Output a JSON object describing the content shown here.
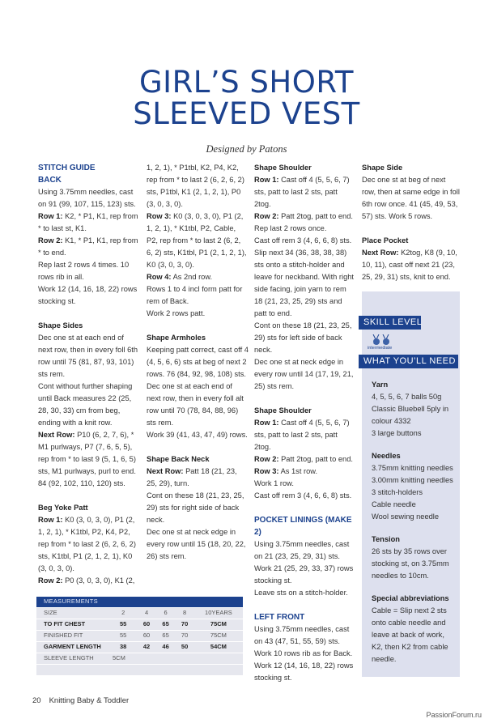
{
  "title_line1": "GIRL’S SHORT",
  "title_line2": "SLEEVED VEST",
  "byline": "Designed by Patons",
  "columns": [
    [
      {
        "type": "h2",
        "text": "STITCH GUIDE"
      },
      {
        "type": "h2",
        "text": "BACK"
      },
      {
        "type": "p",
        "text": "Using 3.75mm needles, cast on 91 (99, 107, 115, 123) sts."
      },
      {
        "type": "p",
        "bold": "Row 1:",
        "text": "K2, * P1, K1, rep from * to last st, K1."
      },
      {
        "type": "p",
        "bold": "Row 2:",
        "text": "K1, * P1, K1, rep from * to end."
      },
      {
        "type": "p",
        "text": "Rep last 2 rows 4 times. 10 rows rib in all."
      },
      {
        "type": "p",
        "text": "Work 12 (14, 16, 18, 22) rows stocking st."
      },
      {
        "type": "h3",
        "text": "Shape Sides"
      },
      {
        "type": "p",
        "text": "Dec one st at each end of next row, then in every foll 6th row until 75 (81, 87, 93, 101) sts rem."
      },
      {
        "type": "p",
        "text": "Cont without further shaping until Back measures 22 (25, 28, 30, 33) cm from beg, ending with a knit row."
      },
      {
        "type": "p",
        "bold": "Next Row:",
        "text": "P10 (6, 2, 7, 6), * M1 purlways, P7 (7, 6, 5, 5), rep from * to last 9 (5, 1, 6, 5) sts, M1 purlways, purl to end. 84 (92, 102, 110, 120) sts."
      },
      {
        "type": "h3",
        "text": "Beg Yoke Patt"
      },
      {
        "type": "p",
        "bold": "Row 1:",
        "text": "K0 (3, 0, 3, 0), P1 (2, 1, 2, 1), * K1tbl, P2, K4, P2, rep from * to last 2 (6, 2, 6, 2) sts, K1tbl, P1 (2, 1, 2, 1), K0 (3, 0, 3, 0)."
      },
      {
        "type": "p",
        "bold": "Row 2:",
        "text": "P0 (3, 0, 3, 0), K1 (2,"
      }
    ],
    [
      {
        "type": "p",
        "text": "1, 2, 1), * P1tbl, K2, P4, K2, rep from * to last 2 (6, 2, 6, 2) sts, P1tbl, K1 (2, 1, 2, 1), P0 (3, 0, 3, 0)."
      },
      {
        "type": "p",
        "bold": "Row 3:",
        "text": "K0 (3, 0, 3, 0), P1 (2, 1, 2, 1), * K1tbl, P2, Cable, P2, rep from * to last 2 (6, 2, 6, 2) sts, K1tbl, P1 (2, 1, 2, 1), K0 (3, 0, 3, 0)."
      },
      {
        "type": "p",
        "bold": "Row 4:",
        "text": "As 2nd row."
      },
      {
        "type": "p",
        "text": "Rows 1 to 4 incl form patt for rem of Back."
      },
      {
        "type": "p",
        "text": "Work 2 rows patt."
      },
      {
        "type": "h3",
        "text": "Shape Armholes"
      },
      {
        "type": "p",
        "text": "Keeping patt correct, cast off 4 (4, 5, 6, 6) sts at beg of next 2 rows. 76 (84, 92, 98, 108) sts."
      },
      {
        "type": "p",
        "text": "Dec one st at each end of next row, then in every foll alt row until 70 (78, 84, 88, 96) sts rem."
      },
      {
        "type": "p",
        "text": "Work 39 (41, 43, 47, 49) rows."
      },
      {
        "type": "h3",
        "text": "Shape Back Neck"
      },
      {
        "type": "p",
        "bold": "Next Row:",
        "text": "Patt 18 (21, 23, 25, 29), turn."
      },
      {
        "type": "p",
        "text": "Cont on these 18 (21, 23, 25, 29) sts for right side of back neck."
      },
      {
        "type": "p",
        "text": "Dec one st at neck edge in every row until 15 (18, 20, 22, 26) sts rem."
      }
    ],
    [
      {
        "type": "h3",
        "text": "Shape Shoulder"
      },
      {
        "type": "p",
        "bold": "Row 1:",
        "text": "Cast off 4 (5, 5, 6, 7) sts, patt to last 2 sts, patt 2tog."
      },
      {
        "type": "p",
        "bold": "Row 2:",
        "text": "Patt 2tog, patt to end."
      },
      {
        "type": "p",
        "text": "Rep last 2 rows once."
      },
      {
        "type": "p",
        "text": "Cast off rem 3 (4, 6, 6, 8) sts."
      },
      {
        "type": "p",
        "text": "Slip next 34 (36, 38, 38, 38) sts onto a stitch-holder and leave for neckband. With right side facing, join yarn to rem 18 (21, 23, 25, 29) sts and patt to end."
      },
      {
        "type": "p",
        "text": "Cont on these 18 (21, 23, 25, 29) sts for left side of back neck."
      },
      {
        "type": "p",
        "text": "Dec one st at neck edge in every row until 14 (17, 19, 21, 25) sts rem."
      },
      {
        "type": "h3",
        "text": "Shape Shoulder"
      },
      {
        "type": "p",
        "bold": "Row 1:",
        "text": "Cast off 4 (5, 5, 6, 7) sts, patt to last 2 sts, patt 2tog."
      },
      {
        "type": "p",
        "bold": "Row 2:",
        "text": "Patt 2tog, patt to end."
      },
      {
        "type": "p",
        "bold": "Row 3:",
        "text": "As 1st row."
      },
      {
        "type": "p",
        "text": "Work 1 row."
      },
      {
        "type": "p",
        "text": "Cast off rem 3 (4, 6, 6, 8) sts."
      },
      {
        "type": "h2s",
        "text": "POCKET LININGS (MAKE 2)"
      },
      {
        "type": "p",
        "text": "Using 3.75mm needles, cast on 21 (23, 25, 29, 31) sts."
      },
      {
        "type": "p",
        "text": "Work 21 (25, 29, 33, 37) rows stocking st."
      },
      {
        "type": "p",
        "text": "Leave sts on a stitch-holder."
      },
      {
        "type": "h2s",
        "text": "LEFT FRONT"
      },
      {
        "type": "p",
        "text": "Using 3.75mm needles, cast on 43 (47, 51, 55, 59) sts."
      },
      {
        "type": "p",
        "text": "Work 10 rows rib as for Back."
      },
      {
        "type": "p",
        "text": "Work 12 (14, 16, 18, 22) rows stocking st."
      }
    ],
    [
      {
        "type": "h3",
        "text": "Shape Side"
      },
      {
        "type": "p",
        "text": "Dec one st at beg of next row, then at same edge in foll 6th row once. 41 (45, 49, 53, 57) sts. Work 5 rows."
      },
      {
        "type": "h3",
        "text": "Place Pocket"
      },
      {
        "type": "p",
        "bold": "Next Row:",
        "text": "K2tog, K8 (9, 10, 10, 11), cast off next 21 (23, 25, 29, 31) sts, knit to end."
      }
    ]
  ],
  "sidebar": {
    "skill_label": "SKILL LEVEL",
    "skill_value": "intermediate",
    "skill_icon": "yarn-balls-needles-icon",
    "need_label": "WHAT YOU’LL NEED",
    "items": [
      {
        "type": "h3",
        "text": "Yarn"
      },
      {
        "type": "p",
        "text": "4, 5, 5, 6, 7 balls 50g Classic Bluebell 5ply in colour 4332"
      },
      {
        "type": "p",
        "text": "3 large buttons"
      },
      {
        "type": "h3",
        "text": "Needles"
      },
      {
        "type": "p",
        "text": "3.75mm knitting needles"
      },
      {
        "type": "p",
        "text": "3.00mm knitting needles"
      },
      {
        "type": "p",
        "text": "3 stitch-holders"
      },
      {
        "type": "p",
        "text": "Cable needle"
      },
      {
        "type": "p",
        "text": "Wool sewing needle"
      },
      {
        "type": "h3",
        "text": "Tension"
      },
      {
        "type": "p",
        "text": "26 sts by 35 rows over stocking st, on 3.75mm needles to 10cm."
      },
      {
        "type": "h3",
        "text": "Special abbreviations"
      },
      {
        "type": "p",
        "text": "Cable = Slip next 2 sts onto cable needle and leave at back of work, K2, then K2 from cable needle."
      }
    ]
  },
  "measurements": {
    "header": "MEASUREMENTS",
    "rows": [
      {
        "bold": false,
        "cells": [
          "SIZE",
          "2",
          "4",
          "6",
          "8",
          "10YEARS"
        ]
      },
      {
        "bold": true,
        "cells": [
          "TO FIT CHEST",
          "55",
          "60",
          "65",
          "70",
          "75CM"
        ]
      },
      {
        "bold": false,
        "cells": [
          "FINISHED FIT",
          "55",
          "60",
          "65",
          "70",
          "75CM"
        ]
      },
      {
        "bold": true,
        "cells": [
          "GARMENT LENGTH",
          "38",
          "42",
          "46",
          "50",
          "54CM"
        ]
      },
      {
        "bold": false,
        "cells": [
          "SLEEVE LENGTH",
          "5CM",
          "",
          "",
          "",
          ""
        ]
      },
      {
        "bold": false,
        "cells": [
          "",
          "",
          "",
          "",
          "",
          ""
        ]
      }
    ]
  },
  "footer": {
    "page": "20",
    "magazine": "Knitting Baby & Toddler"
  },
  "watermark": "PassionForum.ru",
  "colors": {
    "brand_blue": "#1c428e",
    "sidebar_bg": "#dde0ee",
    "table_bg": "#e6e7ee"
  }
}
